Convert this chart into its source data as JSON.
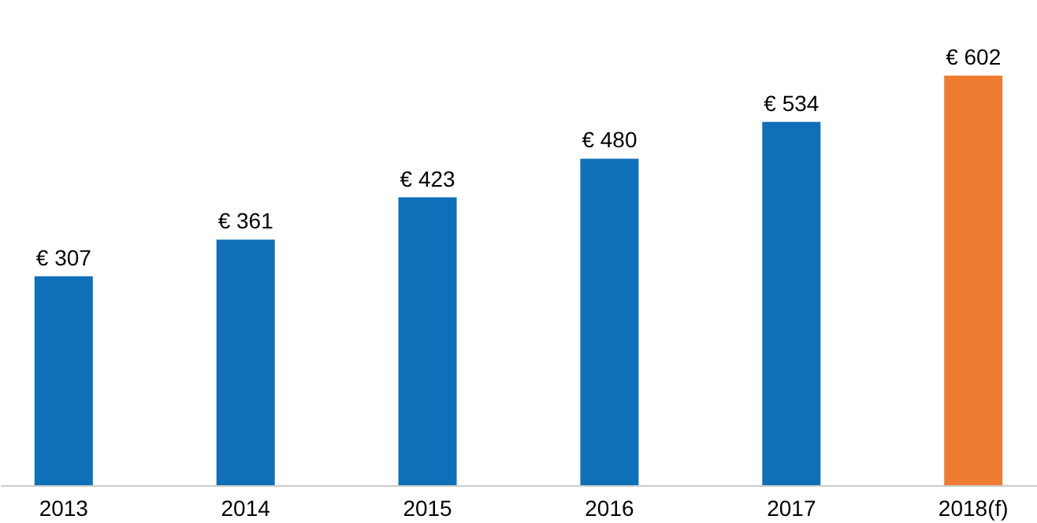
{
  "chart_data": {
    "type": "bar",
    "categories": [
      "2013",
      "2014",
      "2015",
      "2016",
      "2017",
      "2018(f)"
    ],
    "values": [
      307,
      361,
      423,
      480,
      534,
      602
    ],
    "colors": [
      "#0f70b7",
      "#0f70b7",
      "#0f70b7",
      "#0f70b7",
      "#0f70b7",
      "#ee7d31"
    ],
    "value_labels": [
      "€ 307",
      "€ 361",
      "€ 423",
      "€ 480",
      "€ 534",
      "€ 602"
    ],
    "grid": false
  }
}
